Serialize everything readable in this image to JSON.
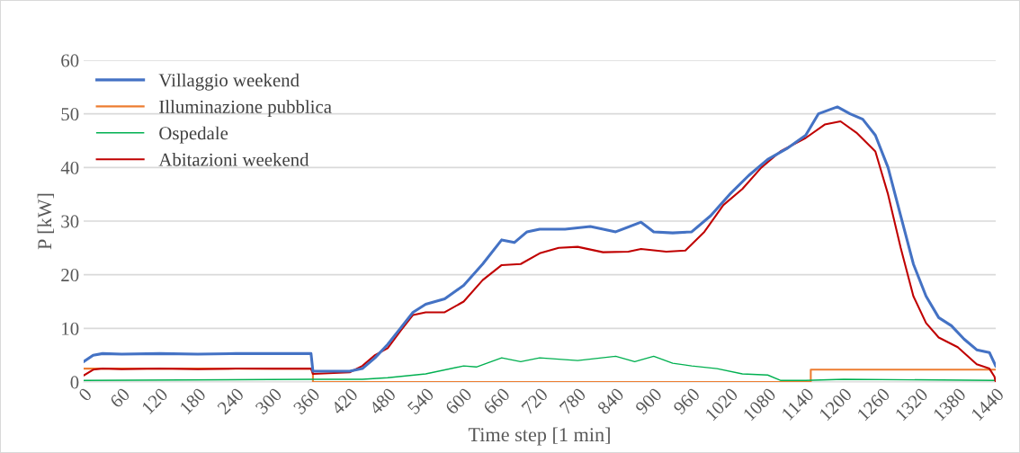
{
  "chart_data": {
    "type": "line",
    "xlabel": "Time step [1 min]",
    "ylabel": "P [kW]",
    "xlim": [
      0,
      1440
    ],
    "xticks": [
      0,
      60,
      120,
      180,
      240,
      300,
      360,
      420,
      480,
      540,
      600,
      660,
      720,
      780,
      840,
      900,
      960,
      1020,
      1080,
      1140,
      1200,
      1260,
      1320,
      1380,
      1440
    ],
    "ylim": [
      0,
      60
    ],
    "yticks": [
      0,
      10,
      20,
      30,
      40,
      50,
      60
    ],
    "grid": "y",
    "legend": "top left",
    "series": [
      {
        "name": "Villaggio weekend",
        "color": "#4472c4",
        "x": [
          0,
          15,
          30,
          60,
          120,
          180,
          240,
          300,
          359,
          362,
          400,
          420,
          440,
          460,
          480,
          500,
          520,
          540,
          570,
          600,
          630,
          660,
          680,
          700,
          720,
          760,
          800,
          840,
          880,
          900,
          930,
          960,
          990,
          1020,
          1050,
          1080,
          1110,
          1140,
          1160,
          1190,
          1210,
          1230,
          1250,
          1270,
          1290,
          1310,
          1330,
          1350,
          1370,
          1390,
          1410,
          1430,
          1440
        ],
        "values": [
          3.8,
          5.0,
          5.3,
          5.2,
          5.3,
          5.2,
          5.3,
          5.3,
          5.3,
          2.0,
          2.0,
          2.0,
          2.5,
          4.5,
          7,
          10,
          13,
          14.5,
          15.5,
          18,
          22,
          26.5,
          26,
          28,
          28.5,
          28.5,
          29,
          28,
          29.8,
          28,
          27.8,
          28,
          31,
          35,
          38.5,
          41.5,
          43.5,
          46,
          50,
          51.3,
          50,
          49,
          46,
          40,
          31,
          22,
          16,
          12,
          10.5,
          8,
          6,
          5.5,
          3
        ]
      },
      {
        "name": "Illuminazione pubblica",
        "color": "#ed7d31",
        "x": [
          0,
          362,
          362,
          1148,
          1148,
          1440
        ],
        "values": [
          2.5,
          2.5,
          0,
          0,
          2.3,
          2.3
        ]
      },
      {
        "name": "Ospedale",
        "color": "#00b050",
        "x": [
          0,
          360,
          440,
          480,
          540,
          600,
          620,
          660,
          690,
          720,
          780,
          840,
          870,
          900,
          930,
          960,
          1000,
          1040,
          1080,
          1100,
          1140,
          1200,
          1440
        ],
        "values": [
          0.3,
          0.5,
          0.5,
          0.8,
          1.5,
          3,
          2.8,
          4.5,
          3.8,
          4.5,
          4,
          4.8,
          3.8,
          4.8,
          3.5,
          3,
          2.5,
          1.5,
          1.3,
          0.3,
          0.3,
          0.5,
          0.3
        ]
      },
      {
        "name": "Abitazioni weekend",
        "color": "#c00000",
        "x": [
          0,
          15,
          30,
          60,
          120,
          180,
          240,
          300,
          359,
          362,
          420,
          440,
          460,
          480,
          500,
          520,
          540,
          570,
          600,
          630,
          660,
          690,
          720,
          750,
          780,
          820,
          860,
          880,
          920,
          950,
          980,
          1010,
          1040,
          1070,
          1100,
          1140,
          1170,
          1195,
          1220,
          1250,
          1270,
          1290,
          1310,
          1330,
          1350,
          1380,
          1410,
          1430,
          1438,
          1440
        ],
        "values": [
          1.2,
          2.3,
          2.5,
          2.4,
          2.5,
          2.4,
          2.5,
          2.5,
          2.5,
          1.5,
          1.8,
          3,
          5,
          6.3,
          9.5,
          12.5,
          13,
          13,
          15,
          19,
          21.8,
          22,
          24,
          25,
          25.2,
          24.2,
          24.3,
          24.8,
          24.3,
          24.5,
          28,
          33,
          36,
          40,
          43,
          45.5,
          48,
          48.6,
          46.5,
          43,
          35,
          25,
          16,
          11,
          8.3,
          6.5,
          3.3,
          2.5,
          1,
          0
        ]
      }
    ]
  }
}
